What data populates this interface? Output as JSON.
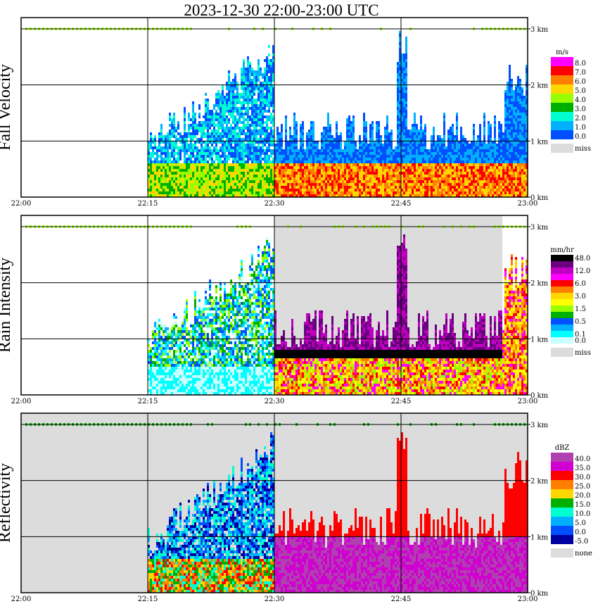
{
  "title": "2023-12-30   22:00-23:00 UTC",
  "panels": [
    {
      "id": "fall-velocity",
      "ylabel": "Fall Velocity",
      "unit": "m/s",
      "legend": [
        {
          "label": "8.0",
          "color": "#ff00ff"
        },
        {
          "label": "7.0",
          "color": "#ff0000"
        },
        {
          "label": "6.0",
          "color": "#ff8000"
        },
        {
          "label": "5.0",
          "color": "#ffd700"
        },
        {
          "label": "4.0",
          "color": "#99ff00"
        },
        {
          "label": "3.0",
          "color": "#00b000"
        },
        {
          "label": "2.0",
          "color": "#00ffd0"
        },
        {
          "label": "1.0",
          "color": "#00b0ff"
        },
        {
          "label": "0.0",
          "color": "#0050ff"
        }
      ],
      "legend_extra": [
        {
          "label": "miss",
          "color": "#dcdcdc"
        }
      ],
      "background": "#ffffff"
    },
    {
      "id": "rain-intensity",
      "ylabel": "Rain Intensity",
      "unit": "mm/hr",
      "legend": [
        {
          "label": "48.0",
          "color": "#000000"
        },
        {
          "label": "",
          "color": "#6a0080"
        },
        {
          "label": "12.0",
          "color": "#c000c0"
        },
        {
          "label": "",
          "color": "#ff00ff"
        },
        {
          "label": "6.0",
          "color": "#ff0000"
        },
        {
          "label": "",
          "color": "#ff8000"
        },
        {
          "label": "3.0",
          "color": "#ffd700"
        },
        {
          "label": "",
          "color": "#ffff00"
        },
        {
          "label": "1.5",
          "color": "#99ff00"
        },
        {
          "label": "",
          "color": "#00b000"
        },
        {
          "label": "0.5",
          "color": "#0050ff"
        },
        {
          "label": "",
          "color": "#00b0ff"
        },
        {
          "label": "0.1",
          "color": "#00ffff"
        },
        {
          "label": "0.0",
          "color": "#c8ffff"
        }
      ],
      "legend_extra": [
        {
          "label": "miss",
          "color": "#dcdcdc"
        }
      ],
      "background": "#ffffff"
    },
    {
      "id": "reflectivity",
      "ylabel": "Reflectivity",
      "unit": "dBZ",
      "legend": [
        {
          "label": "40.0",
          "color": "#b040b0"
        },
        {
          "label": "35.0",
          "color": "#d000d0"
        },
        {
          "label": "30.0",
          "color": "#ff0000"
        },
        {
          "label": "25.0",
          "color": "#ff8000"
        },
        {
          "label": "20.0",
          "color": "#ffd700"
        },
        {
          "label": "15.0",
          "color": "#00b000"
        },
        {
          "label": "10.0",
          "color": "#00ffd0"
        },
        {
          "label": "5.0",
          "color": "#00b0ff"
        },
        {
          "label": "0.0",
          "color": "#0050ff"
        },
        {
          "label": "-5.0",
          "color": "#0000a0"
        }
      ],
      "legend_extra": [
        {
          "label": "none",
          "color": "#dcdcdc"
        }
      ],
      "background": "#dcdcdc"
    }
  ],
  "chart_data": {
    "type": "heatmap",
    "x_ticks": [
      "22:00",
      "22:15",
      "22:30",
      "22:45",
      "23:00"
    ],
    "xlim_minutes": [
      0,
      60
    ],
    "y_ticks": [
      "0 km",
      "1 km",
      "2 km",
      "3 km"
    ],
    "ylim_km": [
      0,
      3.2
    ],
    "grid": true,
    "legend_placement": "right",
    "features": {
      "precip_onset_time": "22:15",
      "transition_time": "22:30",
      "bright_band_height_km_after_2230": 0.7,
      "echo_top_km_before_2230": 2.6,
      "echo_top_km_after_2230": 1.3,
      "missing_interval_rain_intensity": [
        "22:30",
        "22:57"
      ]
    }
  }
}
